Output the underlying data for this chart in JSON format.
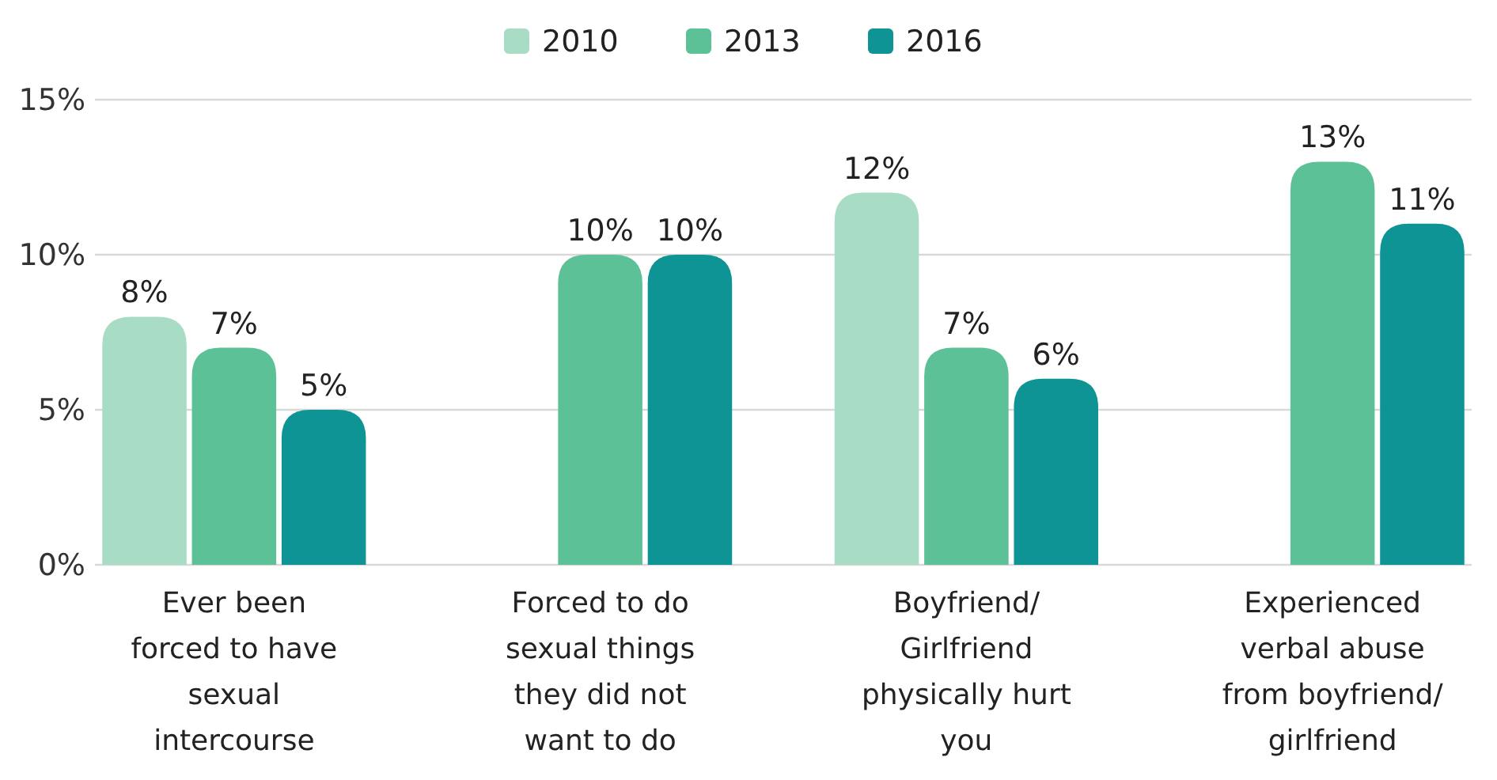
{
  "chart_data": {
    "type": "bar",
    "categories": [
      "Ever been forced to have sexual intercourse",
      "Forced to do sexual things they did not want to do",
      "Boyfriend/ Girlfriend physically hurt you",
      "Experienced verbal abuse from boyfriend/ girlfriend"
    ],
    "series": [
      {
        "name": "2010",
        "color": "#a8dcc4",
        "values": [
          8,
          null,
          12,
          null
        ],
        "value_labels": [
          "8%",
          null,
          "12%",
          null
        ]
      },
      {
        "name": "2013",
        "color": "#5cc196",
        "values": [
          7,
          10,
          7,
          13
        ],
        "value_labels": [
          "7%",
          "10%",
          "7%",
          "13%"
        ]
      },
      {
        "name": "2016",
        "color": "#0e9494",
        "values": [
          5,
          10,
          6,
          11
        ],
        "value_labels": [
          "5%",
          "10%",
          "6%",
          "11%"
        ]
      }
    ],
    "ylim": [
      0,
      15
    ],
    "yticks": [
      {
        "value": 0,
        "label": "0%"
      },
      {
        "value": 5,
        "label": "5%"
      },
      {
        "value": 10,
        "label": "10%"
      },
      {
        "value": 15,
        "label": "15%"
      }
    ],
    "grid": "y",
    "legend": "top"
  }
}
